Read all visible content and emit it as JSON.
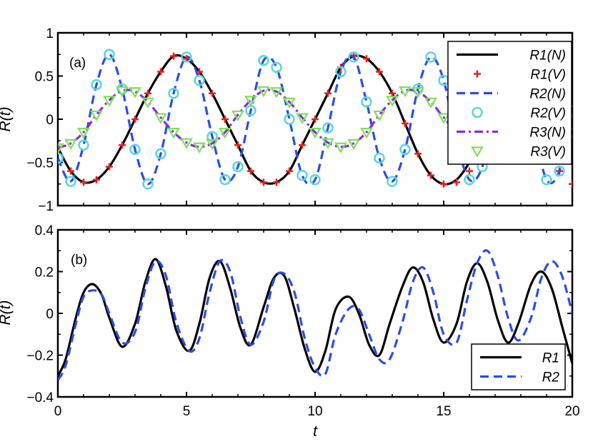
{
  "chart_data": [
    {
      "panel": "(a)",
      "type": "line",
      "xlabel": "",
      "ylabel": "R(t)",
      "xlim": [
        0,
        20
      ],
      "ylim": [
        -1,
        1
      ],
      "xticks": [
        0,
        5,
        10,
        15,
        20
      ],
      "yticks": [
        -1,
        -0.5,
        0,
        0.5,
        1
      ],
      "ytick_labels": [
        "−1",
        "−0.5",
        "0",
        "0.5",
        "1"
      ],
      "legend_position": "top-right",
      "series": [
        {
          "name": "R1(N)",
          "color": "#000000",
          "style": "solid-line",
          "x": [
            0,
            0.5,
            1,
            1.5,
            2,
            2.5,
            3,
            3.5,
            4,
            4.5,
            5,
            5.5,
            6,
            6.5,
            7,
            7.5,
            8,
            8.5,
            9,
            9.5,
            10,
            10.5,
            11,
            11.5,
            12,
            12.5,
            13,
            13.5,
            14,
            14.5,
            15,
            15.5,
            16,
            16.5,
            17,
            17.5,
            18,
            18.5,
            19,
            19.5,
            20
          ],
          "y": [
            -0.33,
            -0.6,
            -0.73,
            -0.7,
            -0.55,
            -0.3,
            0,
            0.3,
            0.55,
            0.73,
            0.7,
            0.55,
            0.3,
            0,
            -0.3,
            -0.6,
            -0.73,
            -0.73,
            -0.6,
            -0.3,
            0,
            0.3,
            0.6,
            0.73,
            0.7,
            0.55,
            0.3,
            -0.05,
            -0.4,
            -0.65,
            -0.75,
            -0.7,
            -0.5,
            -0.2,
            0.15,
            0.45,
            0.65,
            0.7,
            0.55,
            0.2,
            -0.2
          ]
        },
        {
          "name": "R1(V)",
          "color": "#e8201a",
          "style": "plus-markers",
          "x": [
            0,
            0.5,
            1,
            1.5,
            2,
            2.5,
            3,
            3.5,
            4,
            4.5,
            5,
            5.5,
            6,
            6.5,
            7,
            7.5,
            8,
            8.5,
            9,
            9.5,
            10,
            10.5,
            11,
            11.5,
            12,
            12.5,
            13,
            13.5,
            14,
            14.5,
            15,
            15.5,
            16,
            16.5,
            17,
            17.5,
            18,
            18.5,
            19,
            19.5,
            20
          ],
          "y": [
            -0.33,
            -0.6,
            -0.73,
            -0.7,
            -0.55,
            -0.3,
            0,
            0.3,
            0.55,
            0.73,
            0.7,
            0.55,
            0.3,
            0,
            -0.3,
            -0.6,
            -0.73,
            -0.73,
            -0.6,
            -0.3,
            0,
            0.3,
            0.6,
            0.73,
            0.7,
            0.55,
            0.3,
            -0.05,
            -0.4,
            -0.65,
            -0.75,
            -0.73,
            -0.6,
            -0.4,
            -0.2,
            0,
            0.2,
            0.1,
            -0.2,
            -0.6,
            -0.75
          ]
        },
        {
          "name": "R2(N)",
          "color": "#2a4de8",
          "style": "dashed-line",
          "x": [
            0,
            0.5,
            1,
            1.5,
            2,
            2.5,
            3,
            3.5,
            4,
            4.5,
            5,
            5.5,
            6,
            6.5,
            7,
            7.5,
            8,
            8.5,
            9,
            9.5,
            10,
            10.5,
            11,
            11.5,
            12,
            12.5,
            13,
            13.5,
            14,
            14.5,
            15,
            15.5,
            16,
            16.5,
            17,
            17.5,
            18,
            18.5,
            19,
            19.5,
            20
          ],
          "y": [
            -0.45,
            -0.72,
            -0.3,
            0.4,
            0.75,
            0.35,
            -0.35,
            -0.75,
            -0.4,
            0.3,
            0.72,
            0.45,
            -0.2,
            -0.7,
            -0.55,
            0.1,
            0.68,
            0.6,
            0,
            -0.65,
            -0.7,
            -0.1,
            0.55,
            0.72,
            0.2,
            -0.45,
            -0.72,
            -0.35,
            0.35,
            0.72,
            0.45,
            -0.25,
            -0.7,
            -0.55,
            0.15,
            0.68,
            0.55,
            -0.1,
            -0.7,
            -0.6,
            0.1
          ]
        },
        {
          "name": "R2(V)",
          "color": "#5ad6e0",
          "style": "circle-markers",
          "x": [
            0,
            0.5,
            1,
            1.5,
            2,
            2.5,
            3,
            3.5,
            4,
            4.5,
            5,
            5.5,
            6,
            6.5,
            7,
            7.5,
            8,
            8.5,
            9,
            9.5,
            10,
            10.5,
            11,
            11.5,
            12,
            12.5,
            13,
            13.5,
            14,
            14.5,
            15,
            15.5,
            16,
            16.5,
            17,
            17.5,
            18,
            18.5,
            19,
            19.5,
            20
          ],
          "y": [
            -0.45,
            -0.72,
            -0.3,
            0.4,
            0.75,
            0.35,
            -0.35,
            -0.75,
            -0.4,
            0.3,
            0.72,
            0.45,
            -0.2,
            -0.7,
            -0.55,
            0.1,
            0.68,
            0.6,
            0,
            -0.65,
            -0.7,
            -0.1,
            0.55,
            0.72,
            0.2,
            -0.45,
            -0.72,
            -0.35,
            0.35,
            0.72,
            0.45,
            -0.25,
            -0.7,
            -0.55,
            0.15,
            0.68,
            0.55,
            -0.1,
            -0.7,
            -0.6,
            0.1
          ]
        },
        {
          "name": "R3(N)",
          "color": "#8a2be2",
          "style": "dash-dot-line",
          "x": [
            0,
            0.5,
            1,
            1.5,
            2,
            2.5,
            3,
            3.5,
            4,
            4.5,
            5,
            5.5,
            6,
            6.5,
            7,
            7.5,
            8,
            8.5,
            9,
            9.5,
            10,
            10.5,
            11,
            11.5,
            12,
            12.5,
            13,
            13.5,
            14,
            14.5,
            15,
            15.5,
            16,
            16.5,
            17,
            17.5,
            18,
            18.5,
            19,
            19.5,
            20
          ],
          "y": [
            -0.33,
            -0.28,
            -0.15,
            0.05,
            0.22,
            0.33,
            0.32,
            0.2,
            0.02,
            -0.15,
            -0.27,
            -0.32,
            -0.28,
            -0.15,
            0.05,
            0.22,
            0.33,
            0.32,
            0.2,
            0.02,
            -0.15,
            -0.27,
            -0.32,
            -0.28,
            -0.15,
            0.05,
            0.22,
            0.33,
            0.32,
            0.2,
            0.02,
            -0.15,
            -0.27,
            -0.32,
            -0.28,
            -0.15,
            0.05,
            0.22,
            0.3,
            0.2,
            0.0
          ]
        },
        {
          "name": "R3(V)",
          "color": "#7ee05a",
          "style": "triangle-markers",
          "x": [
            0,
            0.5,
            1,
            1.5,
            2,
            2.5,
            3,
            3.5,
            4,
            4.5,
            5,
            5.5,
            6,
            6.5,
            7,
            7.5,
            8,
            8.5,
            9,
            9.5,
            10,
            10.5,
            11,
            11.5,
            12,
            12.5,
            13,
            13.5,
            14,
            14.5,
            15,
            15.5,
            16,
            16.5,
            17,
            17.5,
            18,
            18.5,
            19,
            19.5,
            20
          ],
          "y": [
            -0.33,
            -0.28,
            -0.15,
            0.05,
            0.22,
            0.33,
            0.32,
            0.2,
            0.02,
            -0.15,
            -0.27,
            -0.32,
            -0.28,
            -0.15,
            0.05,
            0.22,
            0.33,
            0.32,
            0.2,
            0.02,
            -0.15,
            -0.27,
            -0.32,
            -0.28,
            -0.15,
            0.05,
            0.22,
            0.33,
            0.32,
            0.2,
            0.02,
            -0.15,
            -0.27,
            -0.32,
            -0.28,
            -0.15,
            0.05,
            0.22,
            0.3,
            0.2,
            -0.15
          ]
        }
      ]
    },
    {
      "panel": "(b)",
      "type": "line",
      "xlabel": "t",
      "ylabel": "R(t)",
      "xlim": [
        0,
        20
      ],
      "ylim": [
        -0.4,
        0.4
      ],
      "xticks": [
        0,
        5,
        10,
        15,
        20
      ],
      "xtick_labels": [
        "0",
        "5",
        "10",
        "15",
        "20"
      ],
      "yticks": [
        -0.4,
        -0.2,
        0,
        0.2,
        0.4
      ],
      "ytick_labels": [
        "−0.4",
        "−0.2",
        "0",
        "0.2",
        "0.4"
      ],
      "legend_position": "bottom-right",
      "series": [
        {
          "name": "R1",
          "color": "#000000",
          "style": "solid-line",
          "x": [
            0,
            0.3,
            0.7,
            1.0,
            1.35,
            1.7,
            2.0,
            2.5,
            3.0,
            3.4,
            3.8,
            4.2,
            4.6,
            5.1,
            5.5,
            5.9,
            6.3,
            6.7,
            7.1,
            7.5,
            8.0,
            8.4,
            8.8,
            9.2,
            9.6,
            10.0,
            10.4,
            10.8,
            11.3,
            11.7,
            12.1,
            12.5,
            12.9,
            13.4,
            13.8,
            14.2,
            14.6,
            15.0,
            15.5,
            15.9,
            16.3,
            16.7,
            17.1,
            17.5,
            17.9,
            18.4,
            18.8,
            19.2,
            19.6,
            20
          ],
          "y": [
            -0.3,
            -0.22,
            -0.02,
            0.1,
            0.14,
            0.09,
            -0.02,
            -0.16,
            -0.05,
            0.15,
            0.26,
            0.13,
            -0.08,
            -0.18,
            -0.05,
            0.17,
            0.25,
            0.12,
            -0.07,
            -0.15,
            0.03,
            0.17,
            0.18,
            0.02,
            -0.17,
            -0.28,
            -0.18,
            0.02,
            0.08,
            0.0,
            -0.15,
            -0.2,
            -0.05,
            0.13,
            0.22,
            0.15,
            -0.03,
            -0.14,
            -0.05,
            0.15,
            0.24,
            0.15,
            -0.03,
            -0.14,
            -0.05,
            0.14,
            0.2,
            0.12,
            -0.06,
            -0.24
          ]
        },
        {
          "name": "R2",
          "color": "#2a4de8",
          "style": "dashed-line",
          "x": [
            0,
            0.3,
            0.7,
            1.0,
            1.35,
            1.7,
            2.0,
            2.5,
            3.0,
            3.4,
            3.8,
            4.2,
            4.6,
            5.1,
            5.5,
            5.9,
            6.3,
            6.7,
            7.1,
            7.5,
            8.0,
            8.4,
            8.8,
            9.2,
            9.6,
            10.0,
            10.4,
            10.8,
            11.3,
            11.7,
            12.1,
            12.5,
            12.9,
            13.4,
            13.8,
            14.2,
            14.6,
            15.0,
            15.5,
            15.9,
            16.3,
            16.7,
            17.1,
            17.5,
            17.9,
            18.4,
            18.8,
            19.2,
            19.6,
            20
          ],
          "y": [
            -0.32,
            -0.25,
            -0.05,
            0.08,
            0.11,
            0.09,
            0.0,
            -0.14,
            -0.09,
            0.12,
            0.25,
            0.18,
            -0.04,
            -0.18,
            -0.12,
            0.1,
            0.25,
            0.2,
            -0.02,
            -0.15,
            -0.04,
            0.16,
            0.19,
            0.1,
            -0.12,
            -0.26,
            -0.29,
            -0.1,
            0.02,
            0.02,
            -0.1,
            -0.22,
            -0.22,
            -0.04,
            0.15,
            0.22,
            0.1,
            -0.1,
            -0.14,
            0.06,
            0.24,
            0.3,
            0.18,
            -0.02,
            -0.13,
            -0.02,
            0.17,
            0.25,
            0.18,
            0.0
          ]
        }
      ]
    }
  ]
}
